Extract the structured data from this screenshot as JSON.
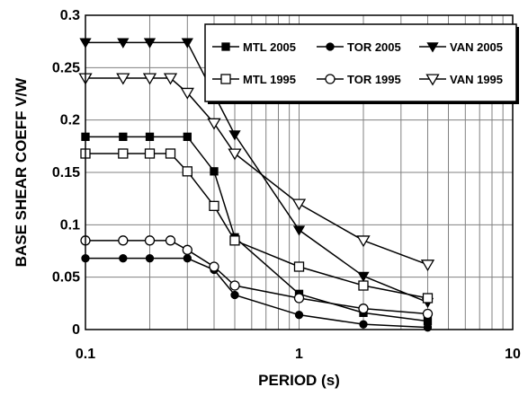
{
  "chart_data": {
    "type": "line",
    "title": "",
    "xlabel": "PERIOD (s)",
    "ylabel": "BASE SHEAR COEFF V/W",
    "xscale": "log",
    "xlim": [
      0.1,
      10
    ],
    "ylim": [
      0,
      0.3
    ],
    "xticks": [
      "0.1",
      "1",
      "10"
    ],
    "yticks": [
      "0",
      "0.05",
      "0.1",
      "0.15",
      "0.2",
      "0.25",
      "0.3"
    ],
    "grid": true,
    "legend_placement": "top-right",
    "series": [
      {
        "name": "MTL 2005",
        "marker": "filled-square",
        "x": [
          0.1,
          0.15,
          0.2,
          0.3,
          0.4,
          0.5,
          1,
          2,
          4
        ],
        "y": [
          0.184,
          0.184,
          0.184,
          0.184,
          0.151,
          0.088,
          0.034,
          0.016,
          0.008
        ]
      },
      {
        "name": "TOR 2005",
        "marker": "filled-circle",
        "x": [
          0.1,
          0.15,
          0.2,
          0.3,
          0.4,
          0.5,
          1,
          2,
          4
        ],
        "y": [
          0.068,
          0.068,
          0.068,
          0.068,
          0.057,
          0.033,
          0.014,
          0.005,
          0.002
        ]
      },
      {
        "name": "VAN 2005",
        "marker": "filled-triangle-down",
        "x": [
          0.1,
          0.15,
          0.2,
          0.3,
          0.5,
          1,
          2,
          4
        ],
        "y": [
          0.274,
          0.274,
          0.274,
          0.274,
          0.186,
          0.095,
          0.051,
          0.026
        ]
      },
      {
        "name": "MTL 1995",
        "marker": "open-square",
        "x": [
          0.1,
          0.15,
          0.2,
          0.25,
          0.3,
          0.4,
          0.5,
          1,
          2,
          4
        ],
        "y": [
          0.168,
          0.168,
          0.168,
          0.168,
          0.151,
          0.118,
          0.085,
          0.06,
          0.042,
          0.03
        ]
      },
      {
        "name": "TOR 1995",
        "marker": "open-circle",
        "x": [
          0.1,
          0.15,
          0.2,
          0.25,
          0.3,
          0.4,
          0.5,
          1,
          2,
          4
        ],
        "y": [
          0.085,
          0.085,
          0.085,
          0.085,
          0.076,
          0.06,
          0.042,
          0.03,
          0.02,
          0.015
        ]
      },
      {
        "name": "VAN 1995",
        "marker": "open-triangle-down",
        "x": [
          0.1,
          0.15,
          0.2,
          0.25,
          0.3,
          0.4,
          0.5,
          1,
          2,
          4
        ],
        "y": [
          0.24,
          0.24,
          0.24,
          0.24,
          0.226,
          0.197,
          0.168,
          0.12,
          0.085,
          0.062
        ]
      }
    ]
  }
}
